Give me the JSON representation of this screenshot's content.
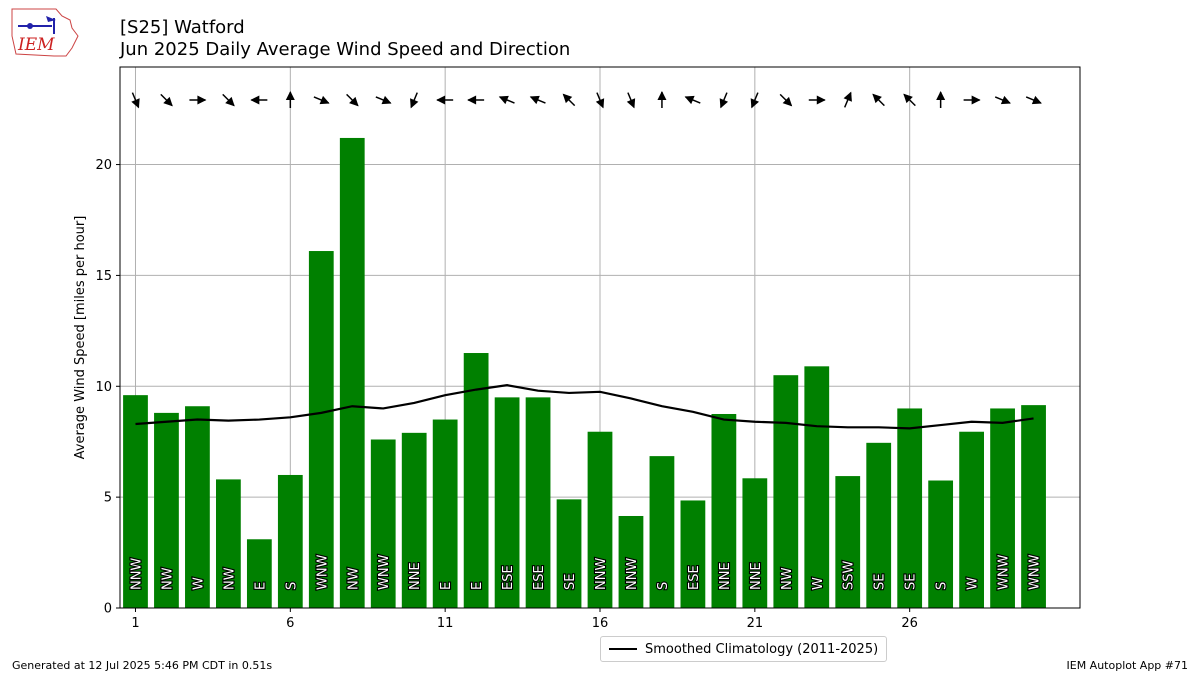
{
  "header": {
    "logo_text": "IEM",
    "title_line1": "[S25] Watford",
    "title_line2": "Jun 2025 Daily Average Wind Speed and Direction"
  },
  "footer": {
    "generated": "Generated at 12 Jul 2025 5:46 PM CDT in 0.51s",
    "app": "IEM Autoplot App #71"
  },
  "legend": {
    "climatology_label": "Smoothed Climatology (2011-2025)"
  },
  "chart_data": {
    "type": "bar",
    "title": "Jun 2025 Daily Average Wind Speed and Direction",
    "xlabel": "",
    "ylabel": "Average Wind Speed [miles per hour]",
    "xlim": [
      0.5,
      31.5
    ],
    "ylim": [
      0,
      24.4
    ],
    "x_ticks": [
      1,
      6,
      11,
      16,
      21,
      26
    ],
    "y_ticks": [
      0,
      5,
      10,
      15,
      20
    ],
    "grid": true,
    "legend_position": "bottom-center",
    "bar_color": "#008000",
    "line_color": "#000000",
    "days": [
      1,
      2,
      3,
      4,
      5,
      6,
      7,
      8,
      9,
      10,
      11,
      12,
      13,
      14,
      15,
      16,
      17,
      18,
      19,
      20,
      21,
      22,
      23,
      24,
      25,
      26,
      27,
      28,
      29,
      30
    ],
    "speed": [
      9.6,
      8.8,
      9.1,
      5.8,
      3.1,
      6.0,
      16.1,
      21.2,
      7.6,
      7.9,
      8.5,
      11.5,
      9.5,
      9.5,
      4.9,
      7.95,
      4.15,
      6.85,
      4.85,
      8.75,
      5.85,
      10.5,
      10.9,
      5.95,
      7.45,
      9.0,
      5.75,
      7.95,
      9.0,
      9.15
    ],
    "direction": [
      "NNW",
      "NW",
      "W",
      "NW",
      "E",
      "S",
      "WNW",
      "NW",
      "WNW",
      "NNE",
      "E",
      "E",
      "ESE",
      "ESE",
      "SE",
      "NNW",
      "NNW",
      "S",
      "ESE",
      "NNE",
      "NNE",
      "NW",
      "W",
      "SSW",
      "SE",
      "SE",
      "S",
      "W",
      "WNW",
      "WNW"
    ],
    "series": [
      {
        "name": "Smoothed Climatology (2011-2025)",
        "type": "line",
        "values": [
          8.3,
          8.4,
          8.5,
          8.45,
          8.5,
          8.6,
          8.8,
          9.1,
          9.0,
          9.25,
          9.6,
          9.85,
          10.05,
          9.8,
          9.7,
          9.75,
          9.45,
          9.1,
          8.85,
          8.5,
          8.4,
          8.35,
          8.2,
          8.15,
          8.15,
          8.1,
          8.25,
          8.4,
          8.35,
          8.55
        ]
      }
    ]
  }
}
